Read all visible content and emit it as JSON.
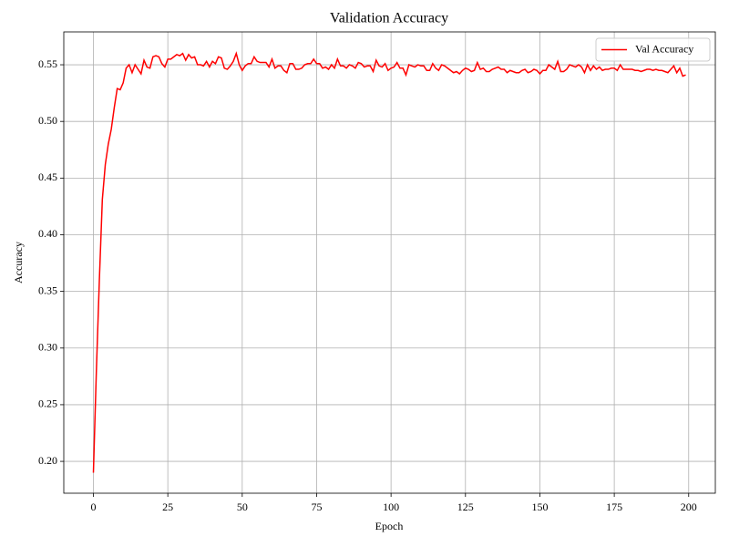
{
  "chart_data": {
    "type": "line",
    "title": "Validation Accuracy",
    "xlabel": "Epoch",
    "ylabel": "Accuracy",
    "x": [
      0,
      1,
      2,
      3,
      4,
      5,
      6,
      7,
      8,
      9,
      10,
      11,
      12,
      13,
      14,
      15,
      16,
      17,
      18,
      19,
      20,
      21,
      22,
      23,
      24,
      25,
      26,
      27,
      28,
      29,
      30,
      31,
      32,
      33,
      34,
      35,
      36,
      37,
      38,
      39,
      40,
      41,
      42,
      43,
      44,
      45,
      46,
      47,
      48,
      49,
      50,
      51,
      52,
      53,
      54,
      55,
      56,
      57,
      58,
      59,
      60,
      61,
      62,
      63,
      64,
      65,
      66,
      67,
      68,
      69,
      70,
      71,
      72,
      73,
      74,
      75,
      76,
      77,
      78,
      79,
      80,
      81,
      82,
      83,
      84,
      85,
      86,
      87,
      88,
      89,
      90,
      91,
      92,
      93,
      94,
      95,
      96,
      97,
      98,
      99,
      100,
      101,
      102,
      103,
      104,
      105,
      106,
      107,
      108,
      109,
      110,
      111,
      112,
      113,
      114,
      115,
      116,
      117,
      118,
      119,
      120,
      121,
      122,
      123,
      124,
      125,
      126,
      127,
      128,
      129,
      130,
      131,
      132,
      133,
      134,
      135,
      136,
      137,
      138,
      139,
      140,
      141,
      142,
      143,
      144,
      145,
      146,
      147,
      148,
      149,
      150,
      151,
      152,
      153,
      154,
      155,
      156,
      157,
      158,
      159,
      160,
      161,
      162,
      163,
      164,
      165,
      166,
      167,
      168,
      169,
      170,
      171,
      172,
      173,
      174,
      175,
      176,
      177,
      178,
      179,
      180,
      181,
      182,
      183,
      184,
      185,
      186,
      187,
      188,
      189,
      190,
      191,
      192,
      193,
      194,
      195,
      196,
      197,
      198,
      199
    ],
    "series": [
      {
        "name": "Val Accuracy",
        "color": "#ff0000",
        "values": [
          0.19,
          0.28,
          0.36,
          0.431,
          0.462,
          0.48,
          0.493,
          0.512,
          0.529,
          0.528,
          0.534,
          0.547,
          0.55,
          0.543,
          0.55,
          0.546,
          0.542,
          0.554,
          0.548,
          0.547,
          0.557,
          0.558,
          0.557,
          0.551,
          0.548,
          0.555,
          0.555,
          0.557,
          0.559,
          0.558,
          0.56,
          0.554,
          0.559,
          0.556,
          0.557,
          0.55,
          0.55,
          0.549,
          0.553,
          0.548,
          0.553,
          0.551,
          0.557,
          0.556,
          0.547,
          0.546,
          0.549,
          0.553,
          0.56,
          0.55,
          0.545,
          0.549,
          0.551,
          0.551,
          0.557,
          0.553,
          0.552,
          0.552,
          0.552,
          0.548,
          0.555,
          0.547,
          0.549,
          0.549,
          0.545,
          0.543,
          0.551,
          0.551,
          0.546,
          0.546,
          0.547,
          0.55,
          0.551,
          0.551,
          0.555,
          0.551,
          0.551,
          0.547,
          0.548,
          0.546,
          0.55,
          0.547,
          0.555,
          0.549,
          0.549,
          0.547,
          0.55,
          0.549,
          0.547,
          0.552,
          0.551,
          0.548,
          0.549,
          0.549,
          0.544,
          0.554,
          0.549,
          0.548,
          0.551,
          0.545,
          0.547,
          0.548,
          0.552,
          0.547,
          0.547,
          0.541,
          0.55,
          0.549,
          0.548,
          0.55,
          0.549,
          0.549,
          0.545,
          0.545,
          0.551,
          0.547,
          0.545,
          0.55,
          0.549,
          0.547,
          0.545,
          0.543,
          0.544,
          0.542,
          0.545,
          0.547,
          0.546,
          0.544,
          0.545,
          0.552,
          0.546,
          0.547,
          0.544,
          0.544,
          0.546,
          0.547,
          0.548,
          0.546,
          0.546,
          0.543,
          0.545,
          0.544,
          0.543,
          0.543,
          0.545,
          0.546,
          0.543,
          0.544,
          0.546,
          0.545,
          0.542,
          0.545,
          0.545,
          0.55,
          0.548,
          0.546,
          0.553,
          0.544,
          0.544,
          0.546,
          0.55,
          0.549,
          0.548,
          0.55,
          0.548,
          0.543,
          0.55,
          0.545,
          0.549,
          0.546,
          0.548,
          0.545,
          0.546,
          0.546,
          0.547,
          0.547,
          0.545,
          0.55,
          0.546,
          0.546,
          0.546,
          0.546,
          0.545,
          0.545,
          0.544,
          0.545,
          0.546,
          0.546,
          0.545,
          0.546,
          0.545,
          0.545,
          0.544,
          0.543,
          0.546,
          0.549,
          0.543,
          0.547,
          0.54,
          0.541
        ]
      }
    ],
    "xlim": [
      -9.95,
      208.95
    ],
    "ylim": [
      0.1719,
      0.579
    ],
    "xticks": [
      0,
      25,
      50,
      75,
      100,
      125,
      150,
      175,
      200
    ],
    "yticks": [
      {
        "value": 0.2,
        "label": "0.20"
      },
      {
        "value": 0.25,
        "label": "0.25"
      },
      {
        "value": 0.3,
        "label": "0.30"
      },
      {
        "value": 0.35,
        "label": "0.35"
      },
      {
        "value": 0.4,
        "label": "0.40"
      },
      {
        "value": 0.45,
        "label": "0.45"
      },
      {
        "value": 0.5,
        "label": "0.50"
      },
      {
        "value": 0.55,
        "label": "0.55"
      }
    ],
    "grid": true,
    "legend": "upper right"
  }
}
